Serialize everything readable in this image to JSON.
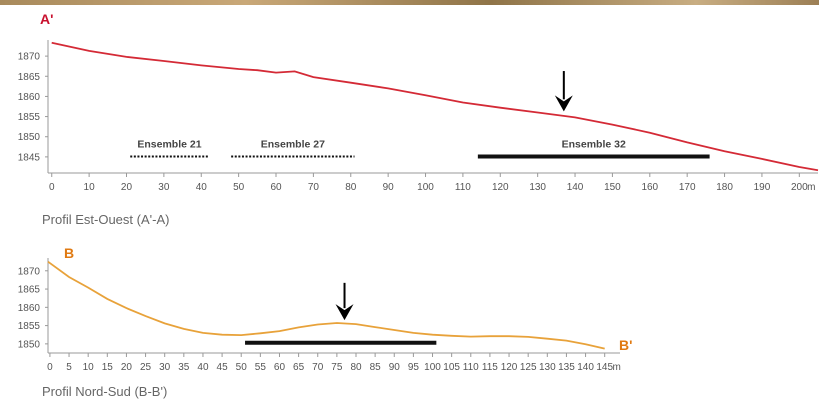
{
  "chart_data": [
    {
      "type": "line",
      "caption": "Profil Est-Ouest (A'-A)",
      "point_label": "A'",
      "line_color": "#d42a36",
      "label_color": "#c8102e",
      "ylim": [
        1841,
        1874
      ],
      "y_ticks": [
        1845,
        1850,
        1855,
        1860,
        1865,
        1870
      ],
      "xlim": [
        -1,
        205
      ],
      "x_ticks": [
        0,
        10,
        20,
        30,
        40,
        50,
        60,
        70,
        80,
        90,
        100,
        110,
        120,
        130,
        140,
        150,
        160,
        170,
        180,
        190,
        200
      ],
      "x_unit": "m",
      "x": [
        0,
        10,
        20,
        30,
        40,
        50,
        55,
        60,
        65,
        70,
        80,
        90,
        100,
        110,
        120,
        130,
        140,
        150,
        160,
        170,
        180,
        190,
        200,
        205
      ],
      "y": [
        1873.3,
        1871.3,
        1869.8,
        1868.8,
        1867.7,
        1866.8,
        1866.5,
        1865.9,
        1866.2,
        1864.8,
        1863.4,
        1862.0,
        1860.3,
        1858.5,
        1857.2,
        1856.0,
        1854.8,
        1853.0,
        1851.0,
        1848.6,
        1846.4,
        1844.5,
        1842.5,
        1841.7
      ],
      "arrow_x": 137,
      "arrow_tip_y": 1856.3,
      "arrow_top_y": 1866.3,
      "ensembles": [
        {
          "label": "Ensemble 21",
          "x_start": 21,
          "x_end": 42,
          "style": "dotted",
          "y": 1845.1
        },
        {
          "label": "Ensemble 27",
          "x_start": 48,
          "x_end": 81,
          "style": "dotted",
          "y": 1845.1
        },
        {
          "label": "Ensemble 32",
          "x_start": 114,
          "x_end": 176,
          "style": "solid",
          "y": 1845.1
        }
      ]
    },
    {
      "type": "line",
      "caption": "Profil Nord-Sud  (B-B')",
      "point_label_start": "B",
      "point_label_end": "B'",
      "line_color": "#e8a23a",
      "label_color": "#e07a12",
      "ylim": [
        1847.5,
        1873.5
      ],
      "y_ticks": [
        1850,
        1855,
        1860,
        1865,
        1870
      ],
      "xlim": [
        -0.5,
        149
      ],
      "x_ticks": [
        0,
        5,
        10,
        15,
        20,
        25,
        30,
        35,
        40,
        45,
        50,
        55,
        60,
        65,
        70,
        75,
        80,
        85,
        90,
        95,
        100,
        105,
        110,
        115,
        120,
        125,
        130,
        135,
        140,
        145
      ],
      "x_unit": "m",
      "x": [
        -0.5,
        5,
        10,
        15,
        20,
        25,
        30,
        35,
        40,
        45,
        50,
        55,
        60,
        65,
        70,
        75,
        80,
        85,
        90,
        95,
        100,
        105,
        110,
        115,
        120,
        125,
        130,
        135,
        140,
        145
      ],
      "y": [
        1872.5,
        1868.3,
        1865.4,
        1862.3,
        1859.8,
        1857.6,
        1855.6,
        1854.1,
        1853.0,
        1852.5,
        1852.4,
        1852.9,
        1853.5,
        1854.5,
        1855.3,
        1855.7,
        1855.4,
        1854.6,
        1853.8,
        1853.0,
        1852.5,
        1852.2,
        1852.0,
        1852.1,
        1852.1,
        1851.9,
        1851.4,
        1850.9,
        1849.9,
        1848.7
      ],
      "arrow_x": 77,
      "arrow_tip_y": 1856.5,
      "arrow_top_y": 1866.7,
      "bar": {
        "x_start": 51,
        "x_end": 101,
        "y": 1850.3
      }
    }
  ]
}
